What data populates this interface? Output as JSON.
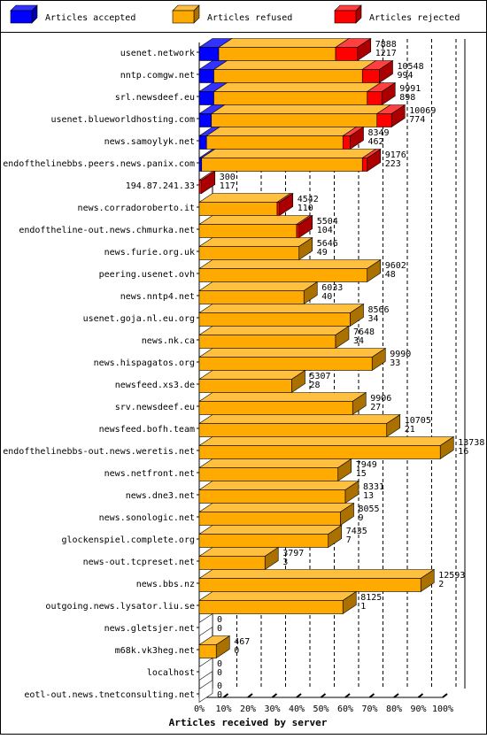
{
  "chart_data": {
    "type": "bar",
    "stacked": true,
    "orientation": "horizontal",
    "style": "3d",
    "xlabel": "Articles received by server",
    "ylabel": "",
    "x_ticks": [
      "0%",
      "10%",
      "20%",
      "30%",
      "40%",
      "50%",
      "60%",
      "70%",
      "80%",
      "90%",
      "100%"
    ],
    "legend_position": "top",
    "grid": "vertical dashed",
    "series": [
      {
        "name": "Articles accepted",
        "color": "#0000ff",
        "side": "#0000aa",
        "top": "#3333ff"
      },
      {
        "name": "Articles refused",
        "color": "#ffaa00",
        "side": "#aa7000",
        "top": "#ffc040"
      },
      {
        "name": "Articles rejected",
        "color": "#ff0000",
        "side": "#aa0000",
        "top": "#ff4040"
      }
    ],
    "categories": [
      "usenet.network",
      "nntp.comgw.net",
      "srl.newsdeef.eu",
      "usenet.blueworldhosting.com",
      "news.samoylyk.net",
      "endofthelinebbs.peers.news.panix.com",
      "194.87.241.33",
      "news.corradoroberto.it",
      "endoftheline-out.news.chmurka.net",
      "news.furie.org.uk",
      "peering.usenet.ovh",
      "news.nntp4.net",
      "usenet.goja.nl.eu.org",
      "news.nk.ca",
      "news.hispagatos.org",
      "newsfeed.xs3.de",
      "srv.newsdeef.eu",
      "newsfeed.bofh.team",
      "endofthelinebbs-out.news.weretis.net",
      "news.netfront.net",
      "news.dne3.net",
      "news.sonologic.net",
      "glockenspiel.complete.org",
      "news-out.tcpreset.net",
      "news.bbs.nz",
      "outgoing.news.lysator.liu.se",
      "news.gletsjer.net",
      "m68k.vk3heg.net",
      "localhost",
      "eotl-out.news.tnetconsulting.net"
    ],
    "totals": [
      7888,
      10548,
      9991,
      10069,
      8349,
      9176,
      300,
      4542,
      5504,
      5646,
      9602,
      6033,
      8566,
      7648,
      9990,
      5307,
      9906,
      10705,
      13738,
      7949,
      8331,
      8055,
      7435,
      3797,
      12593,
      8125,
      0,
      467,
      0,
      0
    ],
    "rejected_counts": [
      1217,
      994,
      898,
      774,
      462,
      223,
      117,
      110,
      104,
      49,
      48,
      40,
      34,
      34,
      33,
      28,
      27,
      21,
      16,
      15,
      13,
      9,
      7,
      3,
      2,
      1,
      0,
      0,
      0,
      0
    ],
    "accepted_pct": [
      8,
      6,
      6,
      5,
      3,
      1,
      0,
      0,
      0,
      0,
      0,
      0,
      0,
      0,
      0,
      0,
      0,
      0,
      0,
      0,
      0,
      0,
      0,
      0,
      0,
      0,
      0,
      0,
      0,
      0
    ],
    "refused_pct": [
      48,
      61,
      63,
      68,
      56,
      66,
      0,
      32,
      40,
      41,
      69,
      43,
      62,
      56,
      71,
      38,
      63,
      77,
      99,
      57,
      60,
      58,
      53,
      27,
      91,
      59,
      0,
      7,
      0,
      0
    ],
    "rejected_pct": [
      9,
      7,
      6,
      6,
      3,
      2,
      1,
      1,
      1,
      0,
      0,
      0,
      0,
      0,
      0,
      0,
      0,
      0,
      0,
      0,
      0,
      0,
      0,
      0,
      0,
      0,
      0,
      0,
      0,
      0
    ]
  }
}
